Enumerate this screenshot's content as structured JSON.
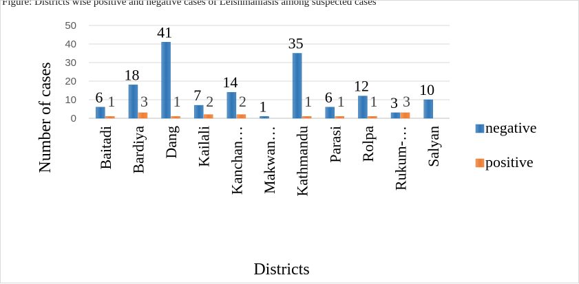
{
  "caption_fragment": "Figure: Districts wise positive and negative cases of Leishmaniasis among suspected cases",
  "chart_data": {
    "type": "bar",
    "title": "",
    "xlabel": "Districts",
    "ylabel": "Number of cases",
    "ylim": [
      0,
      50
    ],
    "yticks": [
      0,
      10,
      20,
      30,
      40,
      50
    ],
    "grid": true,
    "legend_position": "right",
    "categories": [
      "Baitadi",
      "Bardiya",
      "Dang",
      "Kailali",
      "Kanchan…",
      "Makwan…",
      "Kathmandu",
      "Parasi",
      "Rolpa",
      "Rukum-…",
      "Salyan"
    ],
    "series": [
      {
        "name": "negative",
        "color": "#2e75b6",
        "values": [
          6,
          18,
          41,
          7,
          14,
          1,
          35,
          6,
          12,
          3,
          10
        ]
      },
      {
        "name": "positive",
        "color": "#ed7d31",
        "values": [
          1,
          3,
          1,
          2,
          2,
          0,
          1,
          1,
          1,
          3,
          0
        ]
      }
    ],
    "data_labels": {
      "negative": [
        "6",
        "18",
        "41",
        "7",
        "14",
        "1",
        "35",
        "6",
        "12",
        "3",
        "10"
      ],
      "positive": [
        "1",
        "3",
        "1",
        "2",
        "2",
        "",
        "1",
        "1",
        "1",
        "3",
        ""
      ]
    }
  }
}
